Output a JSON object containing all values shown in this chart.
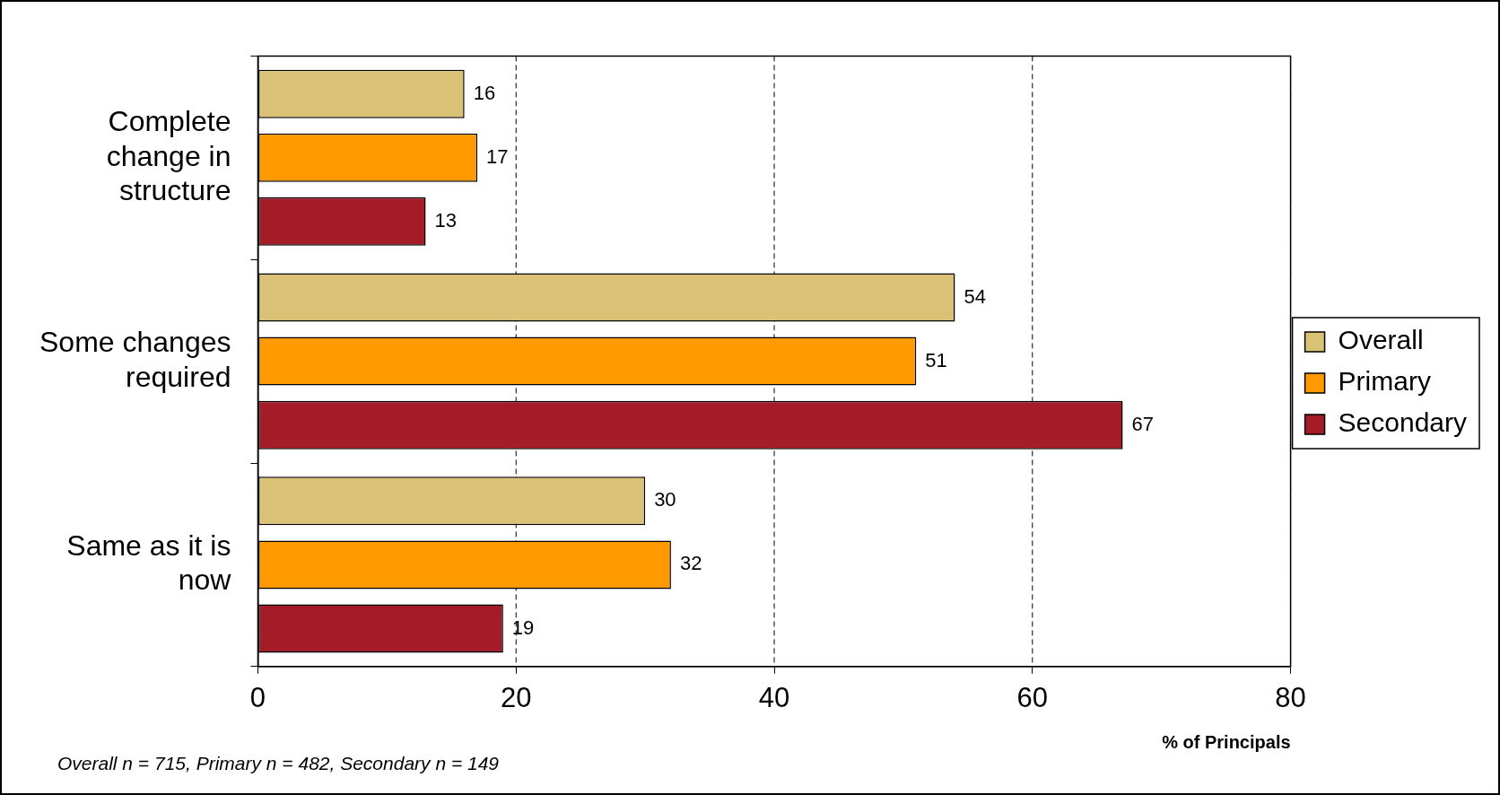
{
  "chart_data": {
    "type": "bar",
    "orientation": "horizontal",
    "categories": [
      "Complete change in structure",
      "Some changes required",
      "Same as it is now"
    ],
    "series": [
      {
        "name": "Overall",
        "color": "#d9c175",
        "values": [
          16,
          54,
          30
        ]
      },
      {
        "name": "Primary",
        "color": "#ff9900",
        "values": [
          17,
          51,
          32
        ]
      },
      {
        "name": "Secondary",
        "color": "#a31c28",
        "values": [
          13,
          67,
          19
        ]
      }
    ],
    "xlim": [
      0,
      80
    ],
    "xticks": [
      0,
      20,
      40,
      60,
      80
    ],
    "xlabel": "% of Principals",
    "grid": "x",
    "legend": "right",
    "data_labels": true,
    "annotations": [
      "Overall n = 715, Primary n = 482, Secondary n = 149"
    ]
  }
}
